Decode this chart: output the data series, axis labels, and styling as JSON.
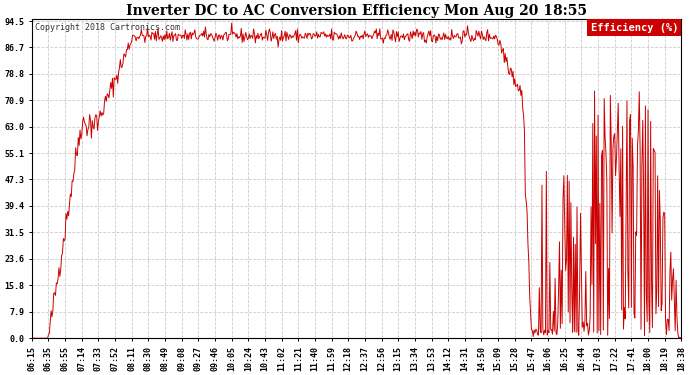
{
  "title": "Inverter DC to AC Conversion Efficiency Mon Aug 20 18:55",
  "copyright": "Copyright 2018 Cartronics.com",
  "legend_label": "Efficiency (%)",
  "legend_bg": "#cc0000",
  "legend_fg": "#ffffff",
  "line_color": "#cc0000",
  "bg_color": "#ffffff",
  "plot_bg_color": "#ffffff",
  "grid_color": "#cccccc",
  "yticks": [
    0.0,
    7.9,
    15.8,
    23.6,
    31.5,
    39.4,
    47.3,
    55.1,
    63.0,
    70.9,
    78.8,
    86.7,
    94.5
  ],
  "xtick_labels": [
    "06:15",
    "06:35",
    "06:55",
    "07:14",
    "07:33",
    "07:52",
    "08:11",
    "08:30",
    "08:49",
    "09:08",
    "09:27",
    "09:46",
    "10:05",
    "10:24",
    "10:43",
    "11:02",
    "11:21",
    "11:40",
    "11:59",
    "12:18",
    "12:37",
    "12:56",
    "13:15",
    "13:34",
    "13:53",
    "14:12",
    "14:31",
    "14:50",
    "15:09",
    "15:28",
    "15:47",
    "16:06",
    "16:25",
    "16:44",
    "17:03",
    "17:22",
    "17:41",
    "18:00",
    "18:19",
    "18:38"
  ],
  "ymin": 0.0,
  "ymax": 94.5,
  "title_fontsize": 10,
  "copyright_fontsize": 6,
  "tick_fontsize": 6,
  "legend_fontsize": 7.5
}
